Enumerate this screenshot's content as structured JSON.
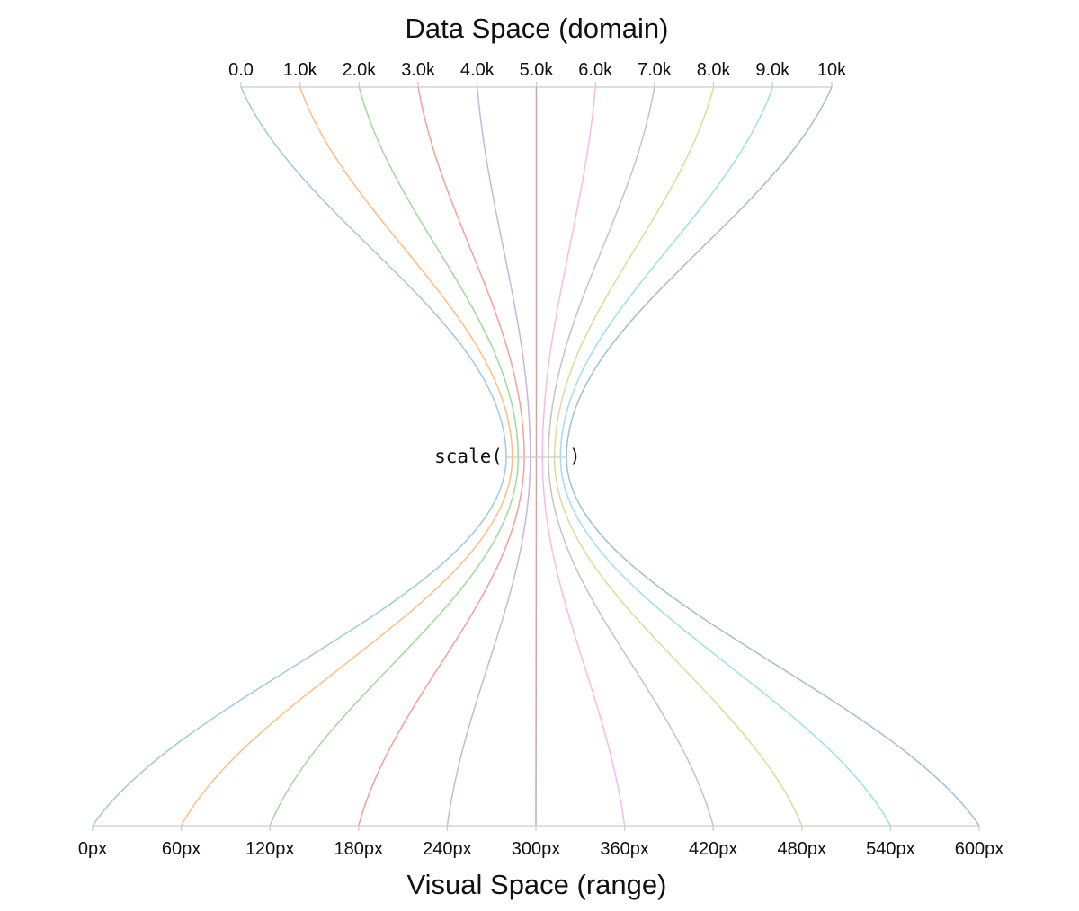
{
  "top_title": "Data Space (domain)",
  "bottom_title": "Visual Space (range)",
  "center_label": {
    "open": "scale(",
    "close": ")"
  },
  "chart_data": {
    "type": "diagram",
    "domain": [
      0,
      10000
    ],
    "range": [
      0,
      600
    ],
    "domain_ticks": [
      {
        "value": 0,
        "label": "0.0"
      },
      {
        "value": 1000,
        "label": "1.0k"
      },
      {
        "value": 2000,
        "label": "2.0k"
      },
      {
        "value": 3000,
        "label": "3.0k"
      },
      {
        "value": 4000,
        "label": "4.0k"
      },
      {
        "value": 5000,
        "label": "5.0k"
      },
      {
        "value": 6000,
        "label": "6.0k"
      },
      {
        "value": 7000,
        "label": "7.0k"
      },
      {
        "value": 8000,
        "label": "8.0k"
      },
      {
        "value": 9000,
        "label": "9.0k"
      },
      {
        "value": 10000,
        "label": "10k"
      }
    ],
    "range_ticks": [
      {
        "value": 0,
        "label": "0px"
      },
      {
        "value": 60,
        "label": "60px"
      },
      {
        "value": 120,
        "label": "120px"
      },
      {
        "value": 180,
        "label": "180px"
      },
      {
        "value": 240,
        "label": "240px"
      },
      {
        "value": 300,
        "label": "300px"
      },
      {
        "value": 360,
        "label": "360px"
      },
      {
        "value": 420,
        "label": "420px"
      },
      {
        "value": 480,
        "label": "480px"
      },
      {
        "value": 540,
        "label": "540px"
      },
      {
        "value": 600,
        "label": "600px"
      }
    ],
    "mappings": [
      {
        "domain": 0,
        "range": 0,
        "color": "#9ecae1"
      },
      {
        "domain": 1000,
        "range": 60,
        "color": "#fdbe85"
      },
      {
        "domain": 2000,
        "range": 120,
        "color": "#a1d99b"
      },
      {
        "domain": 3000,
        "range": 180,
        "color": "#f4a09c"
      },
      {
        "domain": 4000,
        "range": 240,
        "color": "#c5b8dc"
      },
      {
        "domain": 5000,
        "range": 300,
        "color": "#c8a9a3"
      },
      {
        "domain": 6000,
        "range": 360,
        "color": "#f5bde3"
      },
      {
        "domain": 7000,
        "range": 420,
        "color": "#c4c4c4"
      },
      {
        "domain": 8000,
        "range": 480,
        "color": "#dcdc9a"
      },
      {
        "domain": 9000,
        "range": 540,
        "color": "#9fe0ea"
      },
      {
        "domain": 10000,
        "range": 600,
        "color": "#9fbfd8"
      }
    ]
  }
}
